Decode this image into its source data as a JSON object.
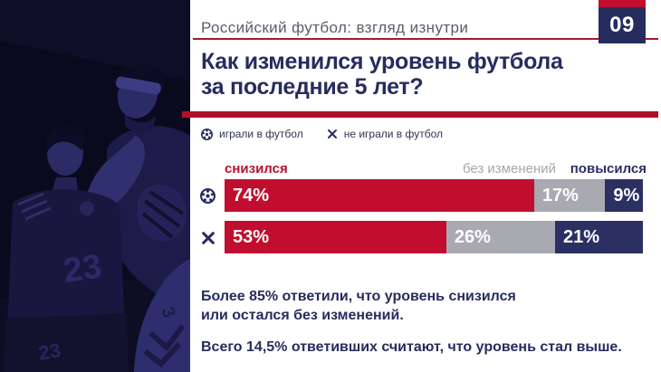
{
  "page_badge": {
    "number": "09"
  },
  "header": {
    "kicker": "Российский футбол: взгляд изнутри"
  },
  "title": {
    "line1": "Как изменился уровень футбола",
    "line2": "за последние 5 лет?"
  },
  "legend": {
    "items": [
      {
        "icon": "soccer-ball-icon",
        "label": "играли в футбол"
      },
      {
        "icon": "x-mark-icon",
        "label": "не играли в футбол"
      }
    ]
  },
  "chart_data": {
    "type": "bar",
    "orientation": "horizontal",
    "stacked": true,
    "unit": "%",
    "xlim": [
      0,
      100
    ],
    "column_labels": [
      {
        "text": "снизился",
        "color": "#b5122f"
      },
      {
        "text": "без изменений",
        "color": "#a6a6ae"
      },
      {
        "text": "повысился",
        "color": "#2b2f62"
      }
    ],
    "segment_colors": [
      "#c20e2e",
      "#a9a9b2",
      "#2b2f62"
    ],
    "rows": [
      {
        "group": "играли в футбол",
        "icon": "soccer-ball-icon",
        "values": [
          74,
          17,
          9
        ]
      },
      {
        "group": "не играли в футбол",
        "icon": "x-mark-icon",
        "values": [
          53,
          26,
          21
        ]
      }
    ]
  },
  "takeaways": {
    "first": "Более 85% ответили, что уровень снизился\nили остался без изменений.",
    "second": "Всего 14,5% ответивших считают, что уровень стал выше."
  },
  "photo": {
    "jersey_number": "23",
    "shorts_number": "23"
  },
  "colors": {
    "accent_red": "#c20e2e",
    "navy": "#272c5e",
    "gray": "#a9a9b2"
  }
}
